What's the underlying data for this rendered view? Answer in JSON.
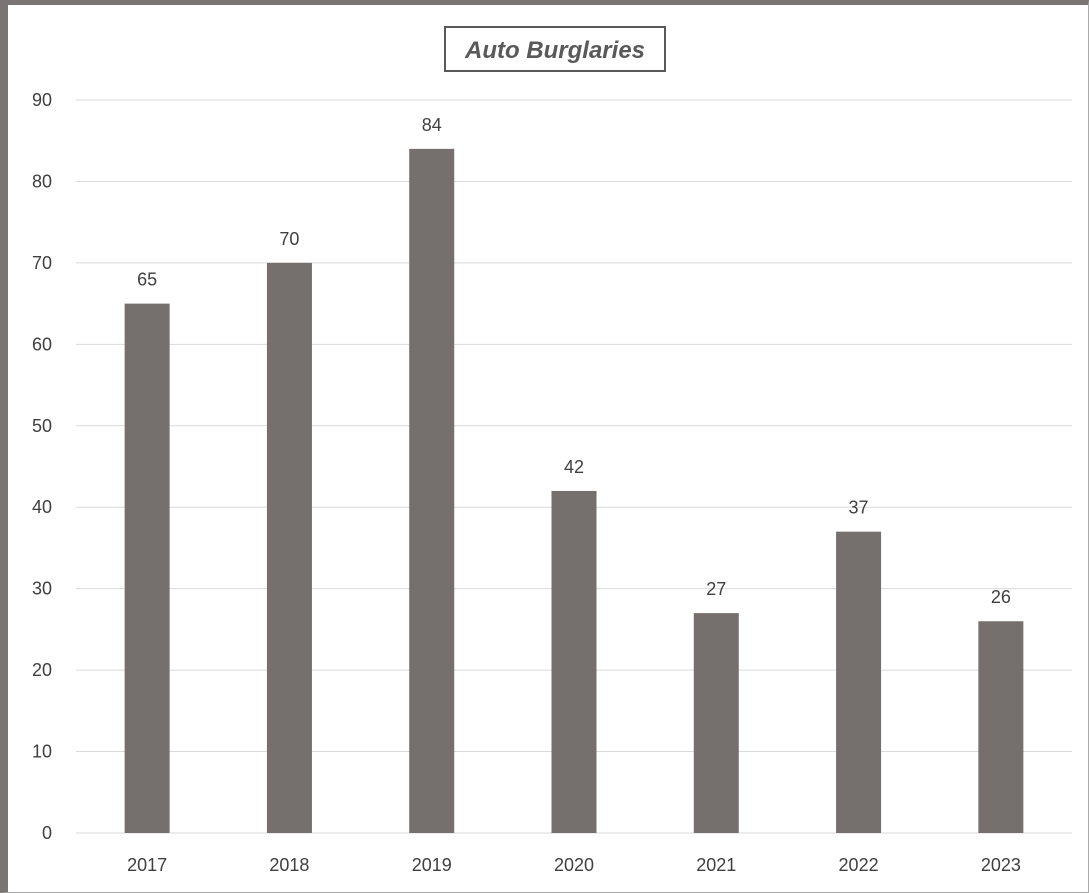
{
  "chart_data": {
    "type": "bar",
    "title": "Auto Burglaries",
    "categories": [
      "2017",
      "2018",
      "2019",
      "2020",
      "2021",
      "2022",
      "2023"
    ],
    "values": [
      65,
      70,
      84,
      42,
      27,
      37,
      26
    ],
    "xlabel": "",
    "ylabel": "",
    "ylim": [
      0,
      90
    ],
    "yticks": [
      0,
      10,
      20,
      30,
      40,
      50,
      60,
      70,
      80,
      90
    ],
    "grid": true,
    "legend": "none",
    "data_labels": true,
    "bar_color": "#75706e",
    "gridline_color": "#d9d9d9",
    "title_box": true
  }
}
